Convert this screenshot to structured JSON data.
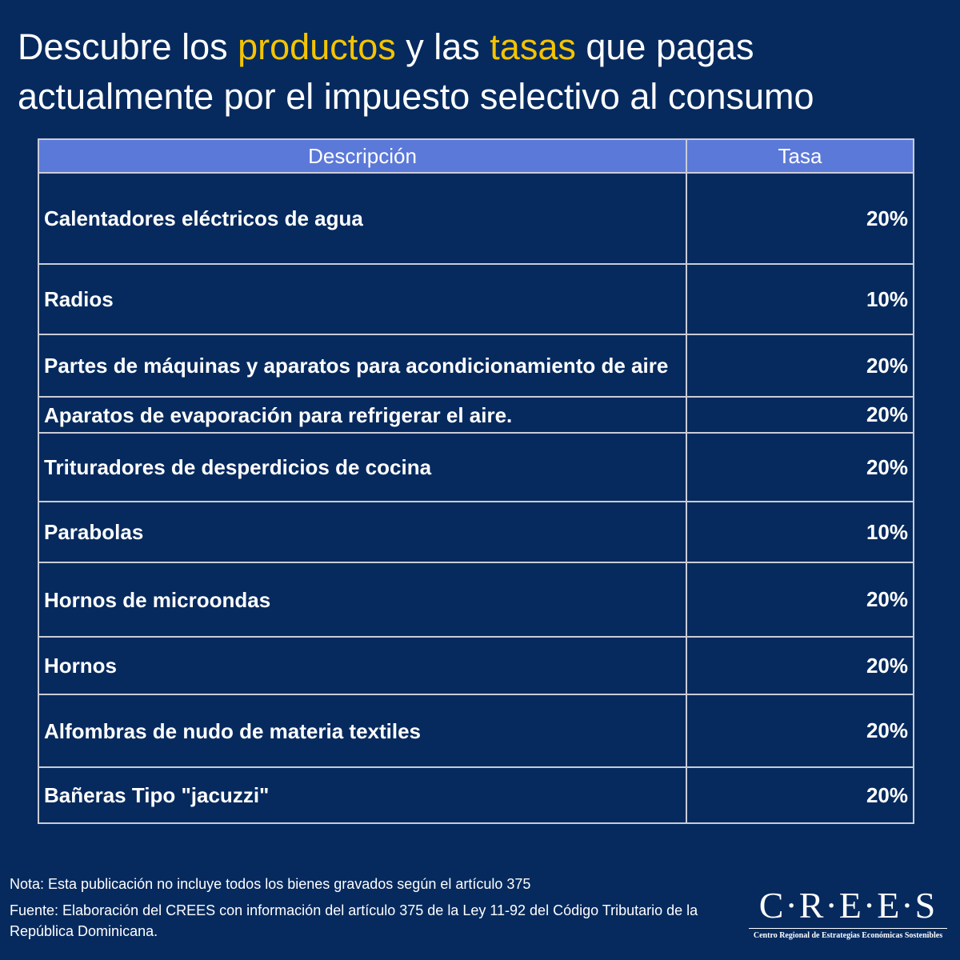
{
  "title": {
    "part1": "Descubre los ",
    "highlight1": "productos",
    "part2": " y las ",
    "highlight2": "tasas",
    "part3": " que pagas actualmente por el impuesto selectivo al consumo",
    "highlight_color": "#f5c400"
  },
  "table": {
    "headers": [
      "Descripción",
      "Tasa"
    ],
    "rows": [
      {
        "description": "Calentadores eléctricos de agua",
        "rate": "20%"
      },
      {
        "description": "Radios",
        "rate": "10%"
      },
      {
        "description": "Partes de máquinas y aparatos para acondicionamiento de aire",
        "rate": "20%"
      },
      {
        "description": "Aparatos de evaporación para refrigerar el aire.",
        "rate": "20%"
      },
      {
        "description": "Trituradores de desperdicios de cocina",
        "rate": "20%"
      },
      {
        "description": "Parabolas",
        "rate": "10%"
      },
      {
        "description": "Hornos de microondas",
        "rate": "20%"
      },
      {
        "description": "Hornos",
        "rate": "20%"
      },
      {
        "description": "Alfombras de nudo de materia textiles",
        "rate": "20%"
      },
      {
        "description": "Bañeras Tipo \"jacuzzi\"",
        "rate": "20%"
      }
    ]
  },
  "footer": {
    "note": "Nota: Esta publicación no incluye todos los bienes gravados según el artículo 375",
    "source": "Fuente: Elaboración del CREES con información del artículo 375 de la Ley 11-92 del Código Tributario de la República Dominicana."
  },
  "logo": {
    "wordmark": "C·R·E·E·S",
    "tagline": "Centro Regional de Estrategias Económicas Sostenibles"
  },
  "colors": {
    "background": "#062a5e",
    "header_fill": "#5b79d8",
    "border": "#c9cdd6"
  }
}
